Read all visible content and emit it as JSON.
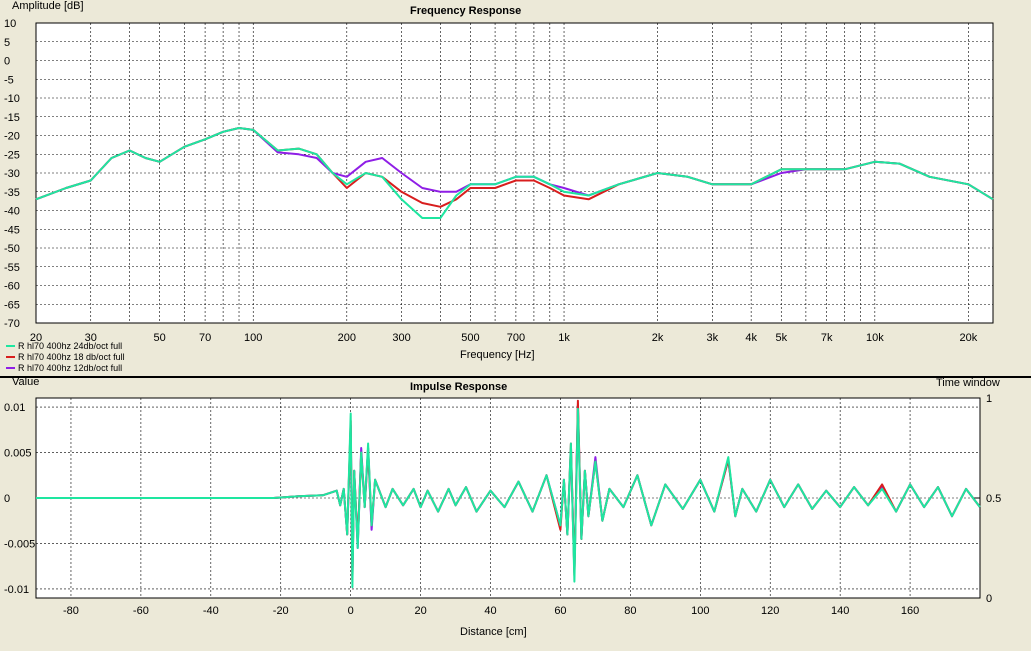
{
  "colors": {
    "background": "#ece9d8",
    "plot_background": "#ffffff",
    "grid": "#000000",
    "series": [
      "#1ee6a0",
      "#d81e1e",
      "#8f1ee6"
    ]
  },
  "frequency_panel": {
    "title": "Frequency Response",
    "ylabel": "Amplitude [dB]",
    "xlabel": "Frequency [Hz]",
    "legend": [
      "R hl70 400hz 24db/oct full",
      "R hl70 400hz 18 db/oct full",
      "R hl70 400hz 12db/oct full"
    ]
  },
  "impulse_panel": {
    "title": "Impulse Response",
    "ylabel": "Value",
    "xlabel": "Distance [cm]",
    "right_label": "Time window"
  },
  "chart_data": [
    {
      "type": "line",
      "title": "Frequency Response",
      "xlabel": "Frequency [Hz]",
      "ylabel": "Amplitude [dB]",
      "xscale": "log",
      "xlim": [
        20,
        24000
      ],
      "ylim": [
        -70,
        10
      ],
      "grid": true,
      "legend_position": "bottom-left",
      "x_ticks": [
        20,
        30,
        50,
        70,
        100,
        200,
        300,
        500,
        700,
        1000,
        2000,
        3000,
        4000,
        5000,
        7000,
        10000,
        20000
      ],
      "x_tick_labels": [
        "20",
        "30",
        "50",
        "70",
        "100",
        "200",
        "300",
        "500",
        "700",
        "1k",
        "2k",
        "3k",
        "4k",
        "5k",
        "7k",
        "10k",
        "20k"
      ],
      "y_ticks": [
        10,
        5,
        0,
        -5,
        -10,
        -15,
        -20,
        -25,
        -30,
        -35,
        -40,
        -45,
        -50,
        -55,
        -60,
        -65,
        -70
      ],
      "x": [
        20,
        25,
        30,
        35,
        40,
        45,
        50,
        60,
        70,
        80,
        90,
        100,
        120,
        140,
        160,
        180,
        200,
        230,
        260,
        300,
        350,
        400,
        450,
        500,
        600,
        700,
        800,
        900,
        1000,
        1200,
        1500,
        2000,
        2500,
        3000,
        4000,
        5000,
        6000,
        8000,
        10000,
        12000,
        15000,
        20000,
        24000
      ],
      "series": [
        {
          "name": "R hl70 400hz 24db/oct full",
          "values": [
            -37,
            -34,
            -32,
            -26,
            -24,
            -26,
            -27,
            -23,
            -21,
            -19,
            -18,
            -18.5,
            -24,
            -23.5,
            -25,
            -30,
            -33,
            -30,
            -31,
            -37,
            -42,
            -42,
            -36,
            -33,
            -33,
            -31,
            -31,
            -33,
            -35,
            -36,
            -33,
            -30,
            -31,
            -33,
            -33,
            -29,
            -29,
            -29,
            -27,
            -27.5,
            -31,
            -33,
            -37
          ]
        },
        {
          "name": "R hl70 400hz 18 db/oct full",
          "values": [
            -37,
            -34,
            -32,
            -26,
            -24,
            -26,
            -27,
            -23,
            -21,
            -19,
            -18,
            -18.5,
            -24,
            -23.5,
            -25,
            -30,
            -34,
            -30,
            -31,
            -35,
            -38,
            -39,
            -37,
            -34,
            -34,
            -32,
            -32,
            -34,
            -36,
            -37,
            -33,
            -30,
            -31,
            -33,
            -33,
            -29,
            -29,
            -29,
            -27,
            -27.5,
            -31,
            -33,
            -37
          ]
        },
        {
          "name": "R hl70 400hz 12db/oct full",
          "values": [
            -37,
            -34,
            -32,
            -26,
            -24,
            -26,
            -27,
            -23,
            -21,
            -19,
            -18,
            -18.5,
            -24.5,
            -25,
            -26,
            -30,
            -31,
            -27,
            -26,
            -30,
            -34,
            -35,
            -35,
            -33,
            -33,
            -31,
            -31,
            -33,
            -34,
            -36,
            -33,
            -30,
            -31,
            -33,
            -33,
            -30,
            -29,
            -29,
            -27,
            -27.5,
            -31,
            -33,
            -37
          ]
        }
      ]
    },
    {
      "type": "line",
      "title": "Impulse Response",
      "xlabel": "Distance [cm]",
      "ylabel": "Value",
      "xlim": [
        -90,
        180
      ],
      "ylim": [
        -0.011,
        0.011
      ],
      "grid": true,
      "x_ticks": [
        -80,
        -60,
        -40,
        -20,
        0,
        20,
        40,
        60,
        80,
        100,
        120,
        140,
        160
      ],
      "y_ticks": [
        0.01,
        0.005,
        0,
        -0.005,
        -0.01
      ],
      "y_tick_labels": [
        "0.01",
        "0.005",
        "0",
        "-0.005",
        "-0.01"
      ],
      "secondary_axis": {
        "label": "Time window",
        "ticks": [
          1,
          0.5,
          0
        ]
      },
      "x": [
        -90,
        -22,
        -15,
        -8,
        -4,
        -3,
        -2,
        -1,
        0,
        0.5,
        1,
        2,
        3,
        4,
        5,
        6,
        7,
        8,
        10,
        12,
        15,
        18,
        20,
        22,
        25,
        28,
        30,
        33,
        36,
        40,
        44,
        48,
        52,
        56,
        60,
        61,
        62,
        63,
        64,
        65,
        66,
        67,
        68,
        70,
        72,
        74,
        78,
        82,
        86,
        90,
        95,
        100,
        104,
        108,
        110,
        112,
        116,
        120,
        124,
        128,
        132,
        136,
        140,
        144,
        148,
        152,
        156,
        160,
        164,
        168,
        172,
        176,
        180
      ],
      "series": [
        {
          "name": "R hl70 400hz 24db/oct full",
          "values": [
            0,
            0,
            0.0002,
            0.0003,
            0.0008,
            -0.0008,
            0.001,
            -0.004,
            0.0093,
            -0.0098,
            0.003,
            -0.0055,
            0.005,
            -0.001,
            0.006,
            -0.003,
            0.002,
            0.001,
            -0.001,
            0.001,
            -0.0008,
            0.001,
            -0.001,
            0.0008,
            -0.0015,
            0.001,
            -0.0008,
            0.0012,
            -0.0015,
            0.0008,
            -0.001,
            0.0018,
            -0.0015,
            0.0025,
            -0.003,
            0.002,
            -0.004,
            0.006,
            -0.0092,
            0.0098,
            -0.0045,
            0.003,
            -0.002,
            0.004,
            -0.0025,
            0.001,
            -0.001,
            0.0025,
            -0.003,
            0.0015,
            -0.0012,
            0.002,
            -0.0015,
            0.0045,
            -0.002,
            0.001,
            -0.0015,
            0.002,
            -0.001,
            0.0015,
            -0.0012,
            0.0008,
            -0.001,
            0.0012,
            -0.0008,
            0.001,
            -0.0015,
            0.0015,
            -0.001,
            0.0012,
            -0.002,
            0.001,
            -0.001
          ]
        },
        {
          "name": "R hl70 400hz 18 db/oct full",
          "values": [
            0,
            0,
            0.0002,
            0.0003,
            0.0008,
            -0.0008,
            0.001,
            -0.004,
            0.0085,
            -0.0092,
            0.003,
            -0.005,
            0.005,
            -0.001,
            0.0055,
            -0.003,
            0.002,
            0.001,
            -0.001,
            0.001,
            -0.0008,
            0.001,
            -0.001,
            0.0008,
            -0.0015,
            0.001,
            -0.0008,
            0.0012,
            -0.0015,
            0.0008,
            -0.001,
            0.0018,
            -0.0015,
            0.0025,
            -0.0035,
            0.002,
            -0.004,
            0.006,
            -0.0085,
            0.0107,
            -0.0045,
            0.003,
            -0.002,
            0.004,
            -0.0025,
            0.001,
            -0.001,
            0.0025,
            -0.003,
            0.0015,
            -0.0012,
            0.002,
            -0.0015,
            0.0042,
            -0.002,
            0.001,
            -0.0015,
            0.002,
            -0.001,
            0.0015,
            -0.0012,
            0.0008,
            -0.001,
            0.0012,
            -0.0008,
            0.0015,
            -0.0015,
            0.0015,
            -0.001,
            0.0012,
            -0.002,
            0.001,
            -0.001
          ]
        },
        {
          "name": "R hl70 400hz 12db/oct full",
          "values": [
            0,
            0,
            0.0002,
            0.0003,
            0.0008,
            -0.0008,
            0.001,
            -0.004,
            0.008,
            -0.0088,
            0.003,
            -0.0055,
            0.0055,
            -0.001,
            0.0055,
            -0.0035,
            0.002,
            0.001,
            -0.001,
            0.001,
            -0.0008,
            0.001,
            -0.001,
            0.0008,
            -0.0015,
            0.001,
            -0.0008,
            0.0012,
            -0.0015,
            0.0008,
            -0.001,
            0.0018,
            -0.0015,
            0.0025,
            -0.003,
            0.002,
            -0.004,
            0.0055,
            -0.0082,
            0.0102,
            -0.0045,
            0.003,
            -0.002,
            0.0045,
            -0.0025,
            0.001,
            -0.001,
            0.0025,
            -0.003,
            0.0015,
            -0.0012,
            0.002,
            -0.0015,
            0.0042,
            -0.002,
            0.001,
            -0.0015,
            0.002,
            -0.001,
            0.0015,
            -0.0012,
            0.0008,
            -0.001,
            0.0012,
            -0.0008,
            0.0012,
            -0.0015,
            0.0015,
            -0.001,
            0.0012,
            -0.002,
            0.001,
            -0.001
          ]
        }
      ]
    }
  ]
}
